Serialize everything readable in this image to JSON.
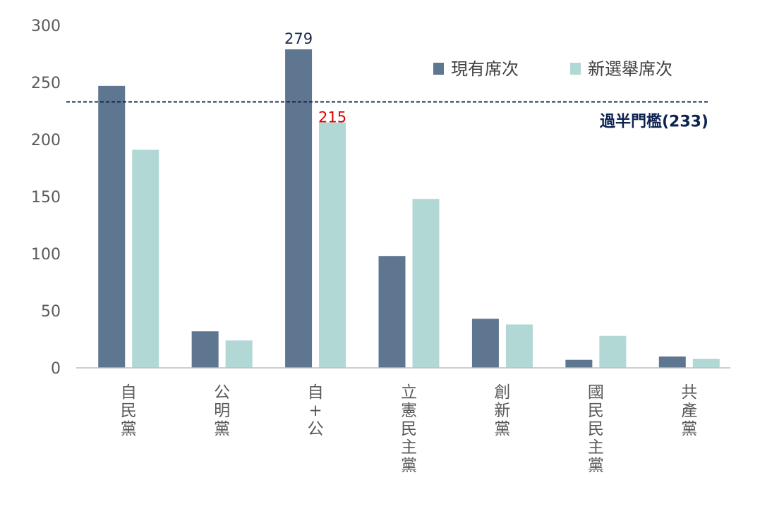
{
  "chart_data": {
    "type": "bar",
    "categories": [
      [
        "自",
        "民",
        "黨"
      ],
      [
        "公",
        "明",
        "黨"
      ],
      [
        "自",
        "+",
        "公"
      ],
      [
        "立",
        "憲",
        "民",
        "主",
        "黨"
      ],
      [
        "創",
        "新",
        "黨"
      ],
      [
        "國",
        "民",
        "民",
        "主",
        "黨"
      ],
      [
        "共",
        "產",
        "黨"
      ]
    ],
    "series": [
      {
        "name": "現有席次",
        "color": "#5f7690",
        "values": [
          247,
          32,
          279,
          98,
          43,
          7,
          10
        ]
      },
      {
        "name": "新選舉席次",
        "color": "#b2d8d6",
        "values": [
          191,
          24,
          215,
          148,
          38,
          28,
          8
        ]
      }
    ],
    "ylim": [
      0,
      300
    ],
    "yticks": [
      0,
      50,
      100,
      150,
      200,
      250,
      300
    ],
    "threshold": {
      "value": 233,
      "label": "過半門檻(233)",
      "color": "#0d2350"
    },
    "annotations": [
      {
        "category_index": 2,
        "series_index": 0,
        "text": "279",
        "color": "#1a2b4a"
      },
      {
        "category_index": 2,
        "series_index": 1,
        "text": "215",
        "color": "#e00000"
      }
    ],
    "legend_position": "top-right",
    "grid": false
  }
}
